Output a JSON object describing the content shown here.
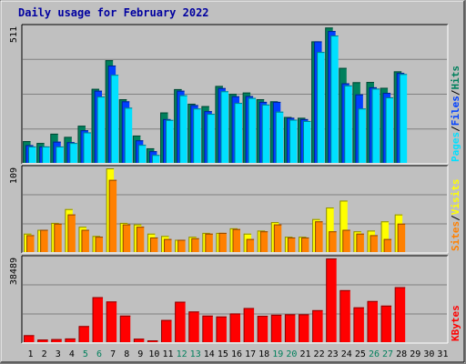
{
  "title": "Daily usage for February 2022",
  "colors": {
    "background": "#c0c0c0",
    "plot_bg": "#c0c0c0",
    "title": "#0000a0",
    "hits": "#00805c",
    "files": "#0040ff",
    "pages": "#00e0ff",
    "visits": "#ffff00",
    "sites": "#ff8000",
    "kbytes": "#ff0000",
    "weekend_day": "#00805c",
    "weekday": "#000000"
  },
  "chart_data": [
    {
      "type": "bar",
      "panel": "hits-files-pages",
      "ymax_label": "511",
      "ylim": [
        0,
        511
      ],
      "legend": [
        "Pages",
        "/",
        "Files",
        "/",
        "Hits"
      ],
      "categories": [
        "1",
        "2",
        "3",
        "4",
        "5",
        "6",
        "7",
        "8",
        "9",
        "10",
        "11",
        "12",
        "13",
        "14",
        "15",
        "16",
        "17",
        "18",
        "19",
        "20",
        "21",
        "22",
        "23",
        "24",
        "25",
        "26",
        "27",
        "28",
        "29",
        "30",
        "31"
      ],
      "series": [
        {
          "name": "Hits",
          "values": [
            82,
            75,
            110,
            98,
            140,
            279,
            387,
            240,
            103,
            55,
            190,
            278,
            223,
            214,
            290,
            260,
            265,
            240,
            232,
            173,
            170,
            458,
            510,
            358,
            304,
            305,
            283,
            345,
            0,
            0,
            0
          ]
        },
        {
          "name": "Files",
          "values": [
            67,
            62,
            80,
            78,
            123,
            272,
            367,
            232,
            85,
            44,
            165,
            272,
            218,
            195,
            282,
            251,
            252,
            230,
            230,
            170,
            165,
            458,
            497,
            300,
            258,
            285,
            264,
            339,
            0,
            0,
            0
          ]
        },
        {
          "name": "Pages",
          "values": [
            62,
            62,
            62,
            75,
            115,
            250,
            332,
            208,
            68,
            30,
            162,
            255,
            205,
            185,
            270,
            226,
            245,
            220,
            193,
            163,
            158,
            418,
            480,
            292,
            205,
            280,
            247,
            335,
            0,
            0,
            0
          ]
        }
      ]
    },
    {
      "type": "bar",
      "panel": "visits-sites",
      "ymax_label": "109",
      "ylim": [
        0,
        109
      ],
      "legend": [
        "Sites",
        "/",
        "Visits"
      ],
      "categories": [
        "1",
        "2",
        "3",
        "4",
        "5",
        "6",
        "7",
        "8",
        "9",
        "10",
        "11",
        "12",
        "13",
        "14",
        "15",
        "16",
        "17",
        "18",
        "19",
        "20",
        "21",
        "22",
        "23",
        "24",
        "25",
        "26",
        "27",
        "28",
        "29",
        "30",
        "31"
      ],
      "series": [
        {
          "name": "Visits",
          "values": [
            24,
            29,
            38,
            56,
            33,
            21,
            109,
            38,
            36,
            24,
            21,
            16,
            20,
            25,
            25,
            31,
            24,
            28,
            39,
            20,
            20,
            43,
            58,
            67,
            27,
            28,
            40,
            49,
            0,
            0,
            0
          ]
        },
        {
          "name": "Sites",
          "values": [
            22,
            29,
            37,
            49,
            29,
            20,
            94,
            36,
            33,
            19,
            17,
            16,
            18,
            24,
            25,
            30,
            17,
            27,
            36,
            19,
            19,
            40,
            27,
            29,
            24,
            22,
            17,
            37,
            0,
            0,
            0
          ]
        }
      ]
    },
    {
      "type": "bar",
      "panel": "kbytes",
      "ymax_label": "38489",
      "ylim": [
        0,
        38489
      ],
      "legend": [
        "KBytes"
      ],
      "categories": [
        "1",
        "2",
        "3",
        "4",
        "5",
        "6",
        "7",
        "8",
        "9",
        "10",
        "11",
        "12",
        "13",
        "14",
        "15",
        "16",
        "17",
        "18",
        "19",
        "20",
        "21",
        "22",
        "23",
        "24",
        "25",
        "26",
        "27",
        "28",
        "29",
        "30",
        "31"
      ],
      "series": [
        {
          "name": "KBytes",
          "values": [
            3200,
            1200,
            1400,
            1700,
            7400,
            20700,
            18700,
            12200,
            1600,
            800,
            10200,
            18600,
            14100,
            12200,
            11800,
            13200,
            15700,
            12100,
            12600,
            12800,
            12800,
            14700,
            38489,
            23900,
            16000,
            18900,
            16800,
            25300,
            0,
            0,
            0
          ]
        }
      ]
    }
  ],
  "x_labels": [
    {
      "label": "1",
      "weekend": false
    },
    {
      "label": "2",
      "weekend": false
    },
    {
      "label": "3",
      "weekend": false
    },
    {
      "label": "4",
      "weekend": false
    },
    {
      "label": "5",
      "weekend": true
    },
    {
      "label": "6",
      "weekend": true
    },
    {
      "label": "7",
      "weekend": false
    },
    {
      "label": "8",
      "weekend": false
    },
    {
      "label": "9",
      "weekend": false
    },
    {
      "label": "10",
      "weekend": false
    },
    {
      "label": "11",
      "weekend": false
    },
    {
      "label": "12",
      "weekend": true
    },
    {
      "label": "13",
      "weekend": true
    },
    {
      "label": "14",
      "weekend": false
    },
    {
      "label": "15",
      "weekend": false
    },
    {
      "label": "16",
      "weekend": false
    },
    {
      "label": "17",
      "weekend": false
    },
    {
      "label": "18",
      "weekend": false
    },
    {
      "label": "19",
      "weekend": true
    },
    {
      "label": "20",
      "weekend": true
    },
    {
      "label": "21",
      "weekend": false
    },
    {
      "label": "22",
      "weekend": false
    },
    {
      "label": "23",
      "weekend": false
    },
    {
      "label": "24",
      "weekend": false
    },
    {
      "label": "25",
      "weekend": false
    },
    {
      "label": "26",
      "weekend": true
    },
    {
      "label": "27",
      "weekend": true
    },
    {
      "label": "28",
      "weekend": false
    },
    {
      "label": "29",
      "weekend": false
    },
    {
      "label": "30",
      "weekend": false
    },
    {
      "label": "31",
      "weekend": false
    }
  ]
}
